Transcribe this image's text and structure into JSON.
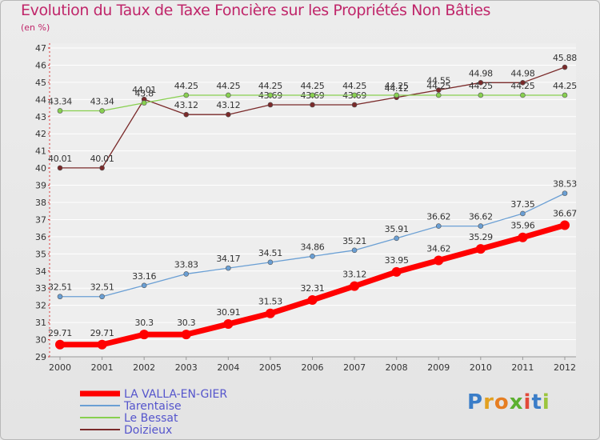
{
  "title": "Evolution du Taux de Taxe Foncière sur les Propriétés Non Bâties",
  "unit_label": "(en %)",
  "logo": {
    "text": "Proxiti"
  },
  "chart_data": {
    "type": "line",
    "title": "Evolution du Taux de Taxe Foncière sur les Propriétés Non Bâties",
    "ylabel": "(en %)",
    "xlabel": "",
    "x": [
      "2000",
      "2001",
      "2002",
      "2003",
      "2004",
      "2005",
      "2006",
      "2007",
      "2008",
      "2009",
      "2010",
      "2011",
      "2012"
    ],
    "ylim": [
      29,
      47
    ],
    "yticks": [
      29,
      30,
      31,
      32,
      33,
      34,
      35,
      36,
      37,
      38,
      39,
      40,
      41,
      42,
      43,
      44,
      45,
      46,
      47
    ],
    "grid": "horizontal",
    "legend_position": "bottom-left",
    "series": [
      {
        "name": "LA VALLA-EN-GIER",
        "color": "#ff0000",
        "values": [
          29.71,
          29.71,
          30.3,
          30.3,
          30.91,
          31.53,
          32.31,
          33.12,
          33.95,
          34.62,
          35.29,
          35.96,
          36.67
        ],
        "labels": [
          "29.71",
          "29.71",
          "30.3",
          "30.3",
          "30.91",
          "31.53",
          "32.31",
          "33.12",
          "33.95",
          "34.62",
          "35.29",
          "35.96",
          "36.67"
        ]
      },
      {
        "name": "Tarentaise",
        "color": "#6a9fd4",
        "values": [
          32.51,
          32.51,
          33.16,
          33.83,
          34.17,
          34.51,
          34.86,
          35.21,
          35.91,
          36.62,
          36.62,
          37.35,
          38.53
        ],
        "labels": [
          "32.51",
          "32.51",
          "33.16",
          "33.83",
          "34.17",
          "34.51",
          "34.86",
          "35.21",
          "35.91",
          "36.62",
          "36.62",
          "37.35",
          "38.53"
        ]
      },
      {
        "name": "Le Bessat",
        "color": "#88d050",
        "values": [
          43.34,
          43.34,
          43.8,
          44.25,
          44.25,
          44.25,
          44.25,
          44.25,
          44.25,
          44.25,
          44.25,
          44.25,
          44.25
        ],
        "labels": [
          "43.34",
          "43.34",
          "43.8",
          "44.25",
          "44.25",
          "44.25",
          "44.25",
          "44.25",
          "44.25",
          "44.25",
          "44.25",
          "44.25",
          "44.25"
        ]
      },
      {
        "name": "Doizieux",
        "color": "#7a2a2a",
        "values": [
          40.01,
          40.01,
          44.01,
          43.12,
          43.12,
          43.69,
          43.69,
          43.69,
          44.12,
          44.55,
          44.98,
          44.98,
          45.88
        ],
        "labels": [
          "40.01",
          "40.01",
          "44.01",
          "43.12",
          "43.12",
          "43.69",
          "43.69",
          "43.69",
          "44.12",
          "44.55",
          "44.98",
          "44.98",
          "45.88"
        ]
      }
    ]
  }
}
